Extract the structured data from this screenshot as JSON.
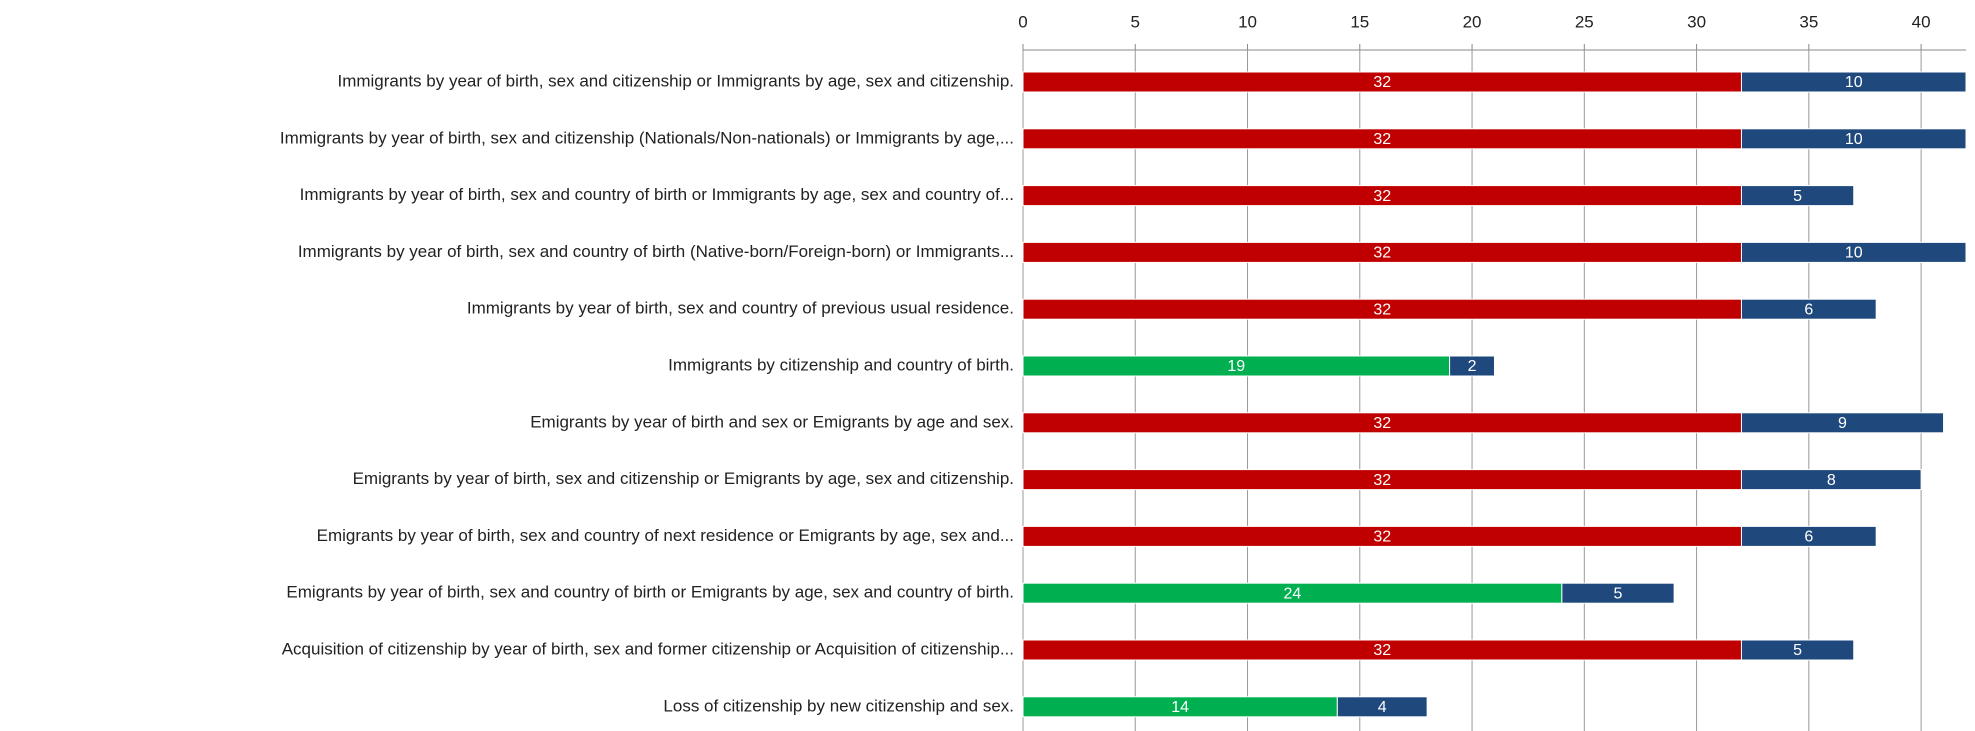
{
  "chart_data": {
    "type": "stacked-hbar",
    "categories": [
      "Immigrants by year of birth, sex and citizenship or Immigrants by age, sex and citizenship.",
      "Immigrants by year of birth, sex and citizenship (Nationals/Non-nationals) or Immigrants by age,...",
      "Immigrants by year of birth, sex and country of birth or Immigrants by age, sex and country of...",
      "Immigrants by year of birth, sex and country of birth (Native-born/Foreign-born) or Immigrants...",
      "Immigrants by year of birth, sex and country of previous usual residence.",
      "Immigrants by citizenship and country of birth.",
      "Emigrants by year of birth and sex or Emigrants by age and sex.",
      "Emigrants by year of birth, sex and citizenship or Emigrants by age, sex and citizenship.",
      "Emigrants by year of birth, sex and country of next residence or Emigrants by age, sex and...",
      "Emigrants by year of birth, sex and country of birth or Emigrants by age, sex and country of birth.",
      "Acquisition of citizenship by year of birth, sex and former citizenship or Acquisition of citizenship...",
      "Loss of citizenship by new citizenship and sex."
    ],
    "series": [
      {
        "colors": [
          "#c00000",
          "#c00000",
          "#c00000",
          "#c00000",
          "#c00000",
          "#00b050",
          "#c00000",
          "#c00000",
          "#c00000",
          "#00b050",
          "#c00000",
          "#00b050"
        ],
        "values": [
          32,
          32,
          32,
          32,
          32,
          19,
          32,
          32,
          32,
          24,
          32,
          14
        ]
      },
      {
        "color": "#1f497d",
        "values": [
          10,
          10,
          5,
          10,
          6,
          2,
          9,
          8,
          6,
          5,
          5,
          4
        ]
      }
    ],
    "xlim": [
      0,
      42
    ],
    "xticks": [
      0,
      5,
      10,
      15,
      20,
      25,
      30,
      35,
      40
    ],
    "grid": true
  }
}
